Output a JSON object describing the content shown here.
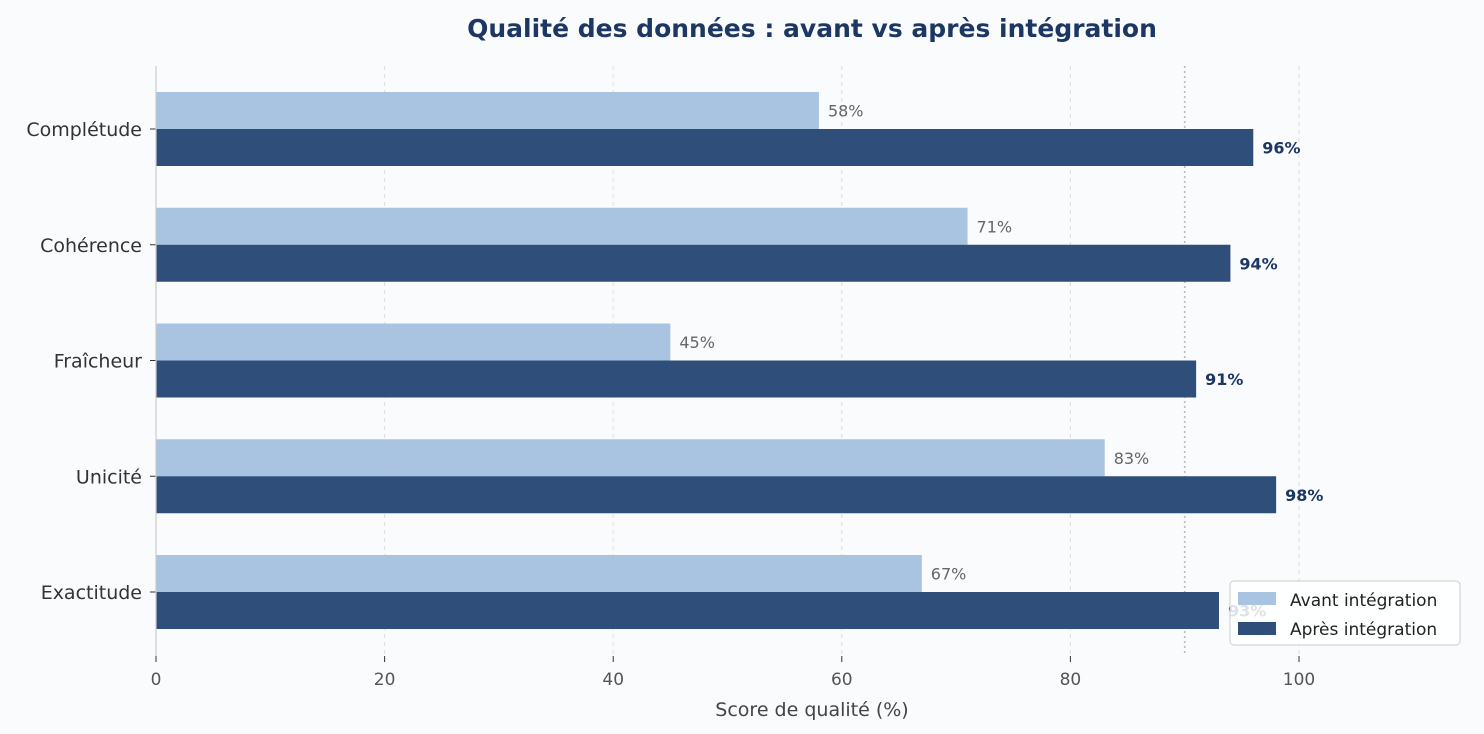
{
  "chart_data": {
    "type": "bar",
    "orientation": "horizontal",
    "title": "Qualité des données : avant vs après intégration",
    "xlabel": "Score de qualité (%)",
    "ylabel": "",
    "xlim": [
      0,
      115
    ],
    "xticks": [
      0,
      20,
      40,
      60,
      80,
      100
    ],
    "categories": [
      "Complétude",
      "Cohérence",
      "Fraîcheur",
      "Unicité",
      "Exactitude"
    ],
    "series": [
      {
        "name": "Avant intégration",
        "values": [
          58,
          71,
          45,
          83,
          67
        ],
        "labels": [
          "58%",
          "71%",
          "45%",
          "83%",
          "67%"
        ],
        "color": "#a9c4e0"
      },
      {
        "name": "Après intégration",
        "values": [
          96,
          94,
          91,
          98,
          93
        ],
        "labels": [
          "96%",
          "94%",
          "91%",
          "98%",
          "93%"
        ],
        "color": "#2f4f7a"
      }
    ],
    "reference_line": {
      "x": 90,
      "style": "dotted"
    },
    "grid": {
      "x": true,
      "y": false,
      "style": "dashed"
    },
    "legend_position": "bottom-right"
  }
}
